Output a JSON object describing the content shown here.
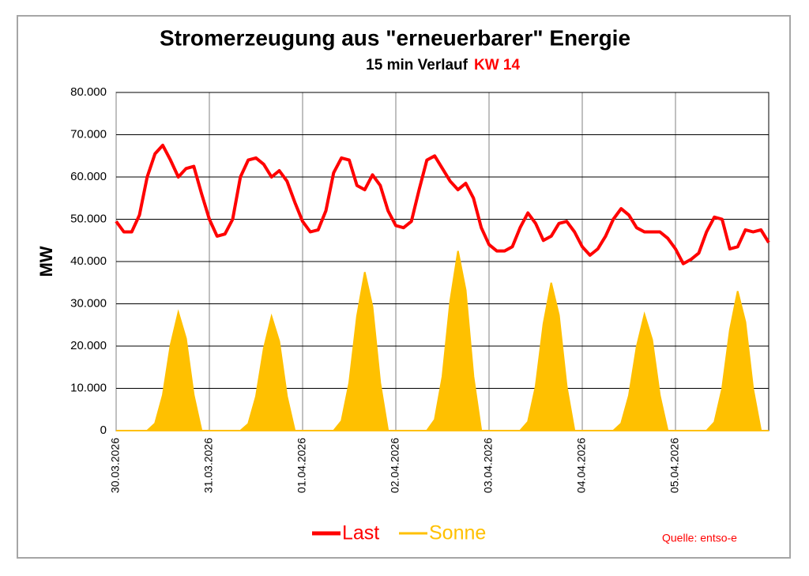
{
  "chart_data": {
    "type": "line",
    "title": "Stromerzeugung aus \"erneuerbarer\" Energie",
    "subtitle": "15 min Verlauf",
    "week": "KW 14",
    "week_color": "#ff0000",
    "ylabel": "MW",
    "source": "Quelle: entso-e",
    "x": [
      0,
      2,
      4,
      6,
      8,
      10,
      12,
      14,
      16,
      18,
      20,
      22,
      24,
      26,
      28,
      30,
      32,
      34,
      36,
      38,
      40,
      42,
      44,
      46,
      48,
      50,
      52,
      54,
      56,
      58,
      60,
      62,
      64,
      66,
      68,
      70,
      72,
      74,
      76,
      78,
      80,
      82,
      84,
      86,
      88,
      90,
      92,
      94,
      96,
      98,
      100,
      102,
      104,
      106,
      108,
      110,
      112,
      114,
      116,
      118,
      120,
      122,
      124,
      126,
      128,
      130,
      132,
      134,
      136,
      138,
      140,
      142,
      144,
      146,
      148,
      150,
      152,
      154,
      156,
      158,
      160,
      162,
      164,
      166,
      168
    ],
    "xlim": [
      0,
      168
    ],
    "xticks": [
      {
        "value": 0,
        "label": "30.03.2026"
      },
      {
        "value": 24,
        "label": "31.03.2026"
      },
      {
        "value": 48,
        "label": "01.04.2026"
      },
      {
        "value": 72,
        "label": "02.04.2026"
      },
      {
        "value": 96,
        "label": "03.04.2026"
      },
      {
        "value": 120,
        "label": "04.04.2026"
      },
      {
        "value": 144,
        "label": "05.04.2026"
      }
    ],
    "ylim": [
      0,
      80000
    ],
    "yticks": [
      0,
      {
        "value": 10000,
        "label": "10.000"
      },
      {
        "value": 20000,
        "label": "20.000"
      },
      {
        "value": 30000,
        "label": "30.000"
      },
      {
        "value": 40000,
        "label": "40.000"
      },
      {
        "value": 50000,
        "label": "50.000"
      },
      {
        "value": 60000,
        "label": "60.000"
      },
      {
        "value": 70000,
        "label": "70.000"
      },
      {
        "value": 80000,
        "label": "80.000"
      }
    ],
    "grid": true,
    "series": [
      {
        "name": "Last",
        "color": "#ff0000",
        "kind": "line",
        "values": [
          49500,
          47000,
          47000,
          51000,
          60000,
          65500,
          67500,
          64000,
          60000,
          62000,
          62500,
          56000,
          50000,
          46000,
          46500,
          50000,
          60000,
          64000,
          64500,
          63000,
          60000,
          61500,
          59000,
          54000,
          49500,
          47000,
          47500,
          52000,
          61000,
          64500,
          64000,
          58000,
          57000,
          60500,
          58000,
          52000,
          48500,
          48000,
          49500,
          57000,
          64000,
          65000,
          62000,
          59000,
          57000,
          58500,
          55000,
          48000,
          44000,
          42500,
          42500,
          43500,
          48000,
          51500,
          49000,
          45000,
          46000,
          49000,
          49500,
          47000,
          43500,
          41500,
          43000,
          46000,
          50000,
          52500,
          51000,
          48000,
          47000,
          47000,
          47000,
          45500,
          43000,
          39500,
          40500,
          42000,
          47000,
          50500,
          50000,
          43000,
          43500,
          47500,
          47000,
          47500,
          44500
        ]
      },
      {
        "name": "Sonne",
        "color": "#ffc000",
        "kind": "area",
        "values": [
          0,
          0,
          0,
          0,
          0,
          1700,
          8400,
          20200,
          28000,
          21800,
          8400,
          0,
          0,
          0,
          0,
          0,
          0,
          1600,
          8100,
          19400,
          27000,
          21100,
          8100,
          0,
          0,
          0,
          0,
          0,
          0,
          2300,
          11300,
          27000,
          37500,
          29300,
          11300,
          0,
          0,
          0,
          0,
          0,
          0,
          2600,
          12800,
          30600,
          42500,
          33200,
          12800,
          0,
          0,
          0,
          0,
          0,
          0,
          2100,
          10500,
          25200,
          35000,
          27300,
          10500,
          0,
          0,
          0,
          0,
          0,
          0,
          1700,
          8300,
          19800,
          27500,
          21500,
          8300,
          0,
          0,
          0,
          0,
          0,
          0,
          2000,
          9900,
          23800,
          33000,
          25700,
          9900,
          0,
          0
        ]
      }
    ]
  }
}
